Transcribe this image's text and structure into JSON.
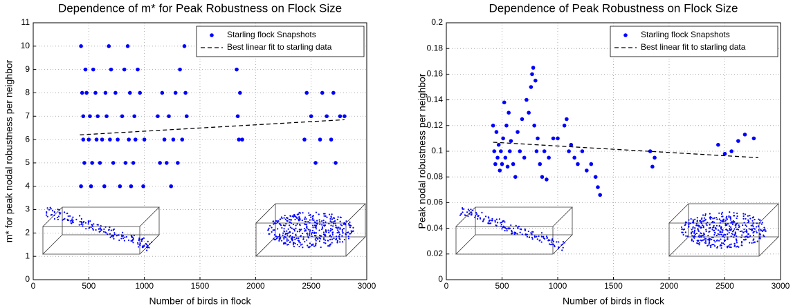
{
  "chart_data": [
    {
      "type": "scatter",
      "title": "Dependence of m* for Peak Robustness on Flock Size",
      "x_label": "Number of birds in flock",
      "y_label": "m* for peak nodal robustness per neighbor",
      "xlim": [
        0,
        3000
      ],
      "xticks": [
        0,
        500,
        1000,
        1500,
        2000,
        2500,
        3000
      ],
      "ylim": [
        0,
        11
      ],
      "yticks": [
        0,
        1,
        2,
        3,
        4,
        5,
        6,
        7,
        8,
        9,
        10,
        11
      ],
      "grid": true,
      "legend": "upper right",
      "series": [
        {
          "name": "Starling flock Snapshots",
          "color": "#0000ff",
          "style": "markers",
          "x": [
            430,
            430,
            440,
            450,
            450,
            460,
            470,
            480,
            500,
            510,
            520,
            530,
            540,
            560,
            570,
            580,
            600,
            620,
            640,
            650,
            660,
            680,
            690,
            700,
            720,
            740,
            760,
            780,
            800,
            820,
            830,
            850,
            860,
            870,
            880,
            900,
            910,
            920,
            940,
            960,
            990,
            1000,
            1120,
            1140,
            1160,
            1180,
            1200,
            1220,
            1240,
            1260,
            1280,
            1300,
            1320,
            1340,
            1360,
            1370,
            1380,
            1830,
            1840,
            1850,
            1860,
            1880,
            2440,
            2460,
            2500,
            2540,
            2580,
            2600,
            2640,
            2680,
            2700,
            2720,
            2760,
            2800
          ],
          "values": [
            10,
            4,
            8,
            7,
            6,
            5,
            9,
            8,
            6,
            7,
            4,
            5,
            9,
            8,
            6,
            7,
            5,
            6,
            4,
            8,
            7,
            10,
            6,
            9,
            5,
            8,
            6,
            4,
            7,
            9,
            5,
            10,
            6,
            8,
            4,
            5,
            7,
            6,
            9,
            8,
            4,
            6,
            7,
            5,
            8,
            6,
            5,
            7,
            4,
            6,
            8,
            5,
            9,
            6,
            10,
            8,
            7,
            9,
            7,
            6,
            8,
            6,
            6,
            8,
            7,
            5,
            6,
            8,
            7,
            6,
            8,
            5,
            7,
            7
          ]
        },
        {
          "name": "Best linear fit to starling data",
          "color": "#000000",
          "style": "dashed",
          "x": [
            420,
            2800
          ],
          "values": [
            6.2,
            6.85
          ]
        }
      ]
    },
    {
      "type": "scatter",
      "title": "Dependence of Peak Robustness on Flock Size",
      "x_label": "Number of birds in flock",
      "y_label": "Peak nodal robustness per neighbor",
      "xlim": [
        0,
        3000
      ],
      "xticks": [
        0,
        500,
        1000,
        1500,
        2000,
        2500,
        3000
      ],
      "ylim": [
        0,
        0.2
      ],
      "yticks": [
        0,
        0.02,
        0.04,
        0.06,
        0.08,
        0.1,
        0.12,
        0.14,
        0.16,
        0.18,
        0.2
      ],
      "grid": true,
      "legend": "upper right",
      "series": [
        {
          "name": "Starling flock Snapshots",
          "color": "#0000ff",
          "style": "markers",
          "x": [
            420,
            430,
            440,
            450,
            460,
            470,
            480,
            490,
            500,
            510,
            520,
            530,
            540,
            550,
            560,
            570,
            580,
            600,
            620,
            640,
            660,
            680,
            700,
            720,
            740,
            760,
            770,
            780,
            790,
            800,
            810,
            820,
            840,
            860,
            880,
            900,
            920,
            960,
            1000,
            1060,
            1080,
            1100,
            1120,
            1150,
            1180,
            1220,
            1260,
            1300,
            1340,
            1360,
            1380,
            1830,
            1850,
            1870,
            2440,
            2500,
            2560,
            2620,
            2680,
            2760
          ],
          "values": [
            0.12,
            0.1,
            0.09,
            0.115,
            0.095,
            0.105,
            0.085,
            0.1,
            0.09,
            0.11,
            0.138,
            0.095,
            0.12,
            0.088,
            0.13,
            0.1,
            0.108,
            0.09,
            0.08,
            0.115,
            0.1,
            0.125,
            0.095,
            0.14,
            0.13,
            0.15,
            0.16,
            0.165,
            0.12,
            0.155,
            0.1,
            0.11,
            0.09,
            0.08,
            0.1,
            0.078,
            0.095,
            0.11,
            0.11,
            0.12,
            0.125,
            0.1,
            0.105,
            0.095,
            0.09,
            0.1,
            0.085,
            0.09,
            0.08,
            0.072,
            0.066,
            0.1,
            0.088,
            0.095,
            0.105,
            0.098,
            0.1,
            0.108,
            0.113,
            0.11
          ]
        },
        {
          "name": "Best linear fit to starling data",
          "color": "#000000",
          "style": "dashed",
          "x": [
            420,
            2800
          ],
          "values": [
            0.107,
            0.095
          ]
        }
      ]
    }
  ]
}
